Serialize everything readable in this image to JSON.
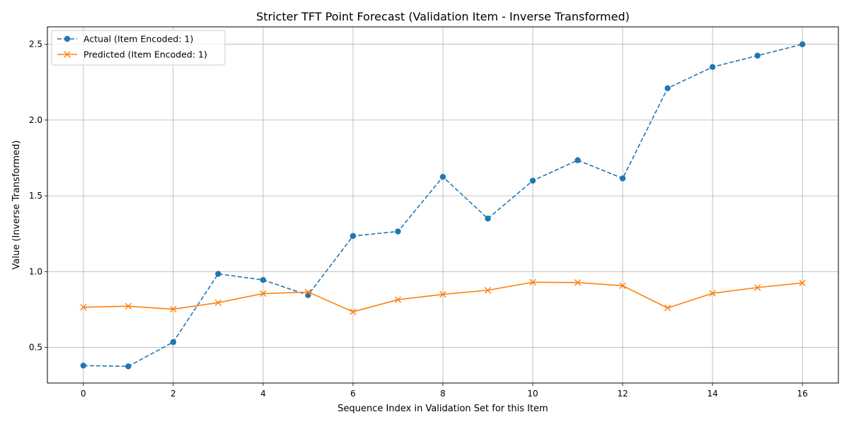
{
  "chart_data": {
    "type": "line",
    "title": "Stricter TFT Point Forecast (Validation Item - Inverse Transformed)",
    "xlabel": "Sequence Index in Validation Set for this Item",
    "ylabel": "Value (Inverse Transformed)",
    "xlim": [
      -0.8,
      16.8
    ],
    "ylim": [
      0.265,
      2.615
    ],
    "xticks": [
      0,
      2,
      4,
      6,
      8,
      10,
      12,
      14,
      16
    ],
    "yticks": [
      0.5,
      1.0,
      1.5,
      2.0,
      2.5
    ],
    "ytick_labels": [
      "0.5",
      "1.0",
      "1.5",
      "2.0",
      "2.5"
    ],
    "grid": true,
    "legend_position": "top-left",
    "x": [
      0,
      1,
      2,
      3,
      4,
      5,
      6,
      7,
      8,
      9,
      10,
      11,
      12,
      13,
      14,
      15,
      16
    ],
    "series": [
      {
        "name": "Actual (Item Encoded: 1)",
        "color": "#1f77b4",
        "linestyle": "dashed",
        "marker": "circle",
        "values": [
          0.38,
          0.375,
          0.535,
          0.985,
          0.945,
          0.845,
          1.235,
          1.265,
          1.625,
          1.35,
          1.6,
          1.735,
          1.615,
          2.21,
          2.35,
          2.425,
          2.5
        ]
      },
      {
        "name": "Predicted (Item Encoded: 1)",
        "color": "#ff7f0e",
        "linestyle": "solid",
        "marker": "x",
        "values": [
          0.765,
          0.772,
          0.752,
          0.795,
          0.855,
          0.865,
          0.735,
          0.815,
          0.85,
          0.877,
          0.93,
          0.928,
          0.907,
          0.76,
          0.857,
          0.895,
          0.925
        ]
      }
    ]
  }
}
